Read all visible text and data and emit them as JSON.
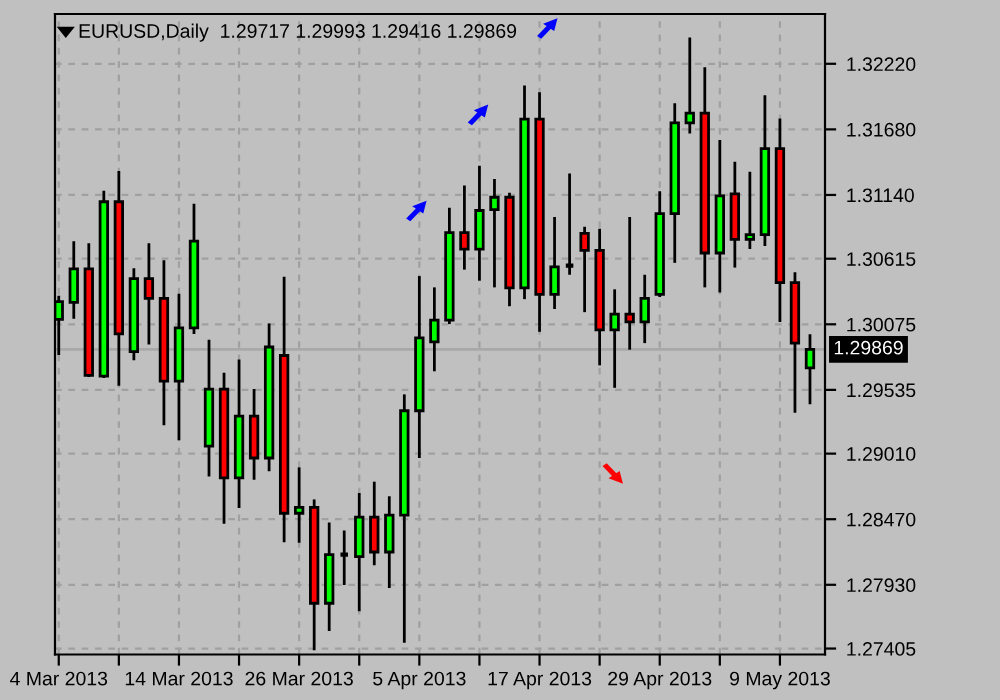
{
  "chart_data": {
    "type": "candlestick",
    "title": "EURUSD,Daily  1.29717 1.29993 1.29416 1.29869",
    "categories": [
      "4 Mar 2013",
      null,
      null,
      null,
      null,
      null,
      null,
      null,
      "14 Mar 2013",
      null,
      null,
      null,
      null,
      null,
      null,
      null,
      "26 Mar 2013",
      null,
      null,
      null,
      null,
      null,
      null,
      null,
      "5 Apr 2013",
      null,
      null,
      null,
      null,
      null,
      null,
      null,
      "17 Apr 2013",
      null,
      null,
      null,
      null,
      null,
      null,
      null,
      "29 Apr 2013",
      null,
      null,
      null,
      null,
      null,
      null,
      null,
      "9 May 2013",
      null,
      null
    ],
    "ohlc": [
      [
        1.30115,
        1.30309,
        1.29823,
        1.30261
      ],
      [
        1.30256,
        1.30759,
        1.3012,
        1.30532
      ],
      [
        1.30532,
        1.30743,
        1.2964,
        1.29655
      ],
      [
        1.29649,
        1.31175,
        1.29633,
        1.31084
      ],
      [
        1.31084,
        1.31337,
        1.29568,
        1.29996
      ],
      [
        1.2985,
        1.30537,
        1.29779,
        1.30451
      ],
      [
        1.30451,
        1.30743,
        1.29909,
        1.30288
      ],
      [
        1.30288,
        1.30602,
        1.29243,
        1.29607
      ],
      [
        1.29607,
        1.30326,
        1.2912,
        1.30045
      ],
      [
        1.30045,
        1.31067,
        1.29996,
        1.30759
      ],
      [
        1.29071,
        1.29948,
        1.28821,
        1.29542
      ],
      [
        1.29542,
        1.29677,
        1.28432,
        1.28811
      ],
      [
        1.28811,
        1.29785,
        1.28562,
        1.29319
      ],
      [
        1.29319,
        1.29542,
        1.28795,
        1.28974
      ],
      [
        1.28974,
        1.30082,
        1.28865,
        1.29888
      ],
      [
        1.29818,
        1.30467,
        1.28281,
        1.28519
      ],
      [
        1.28519,
        1.28897,
        1.28276,
        1.28568
      ],
      [
        1.28568,
        1.28633,
        1.2739,
        1.27778
      ],
      [
        1.27778,
        1.28443,
        1.2755,
        1.28179
      ],
      [
        1.28179,
        1.28378,
        1.27929,
        1.28179
      ],
      [
        1.28162,
        1.28686,
        1.27713,
        1.28487
      ],
      [
        1.28487,
        1.28779,
        1.28091,
        1.282
      ],
      [
        1.282,
        1.28659,
        1.27903,
        1.28503
      ],
      [
        1.28503,
        1.29498,
        1.27453,
        1.29363
      ],
      [
        1.29363,
        1.30472,
        1.28974,
        1.29964
      ],
      [
        1.29931,
        1.30379,
        1.29688,
        1.3011
      ],
      [
        1.3011,
        1.31035,
        1.30077,
        1.30829
      ],
      [
        1.30829,
        1.31218,
        1.30525,
        1.30694
      ],
      [
        1.30694,
        1.31381,
        1.30434,
        1.31012
      ],
      [
        1.31019,
        1.31272,
        1.30379,
        1.31121
      ],
      [
        1.31121,
        1.31158,
        1.30224,
        1.30374
      ],
      [
        1.30374,
        1.32041,
        1.30282,
        1.31765
      ],
      [
        1.31765,
        1.31986,
        1.30013,
        1.30321
      ],
      [
        1.30321,
        1.30959,
        1.30201,
        1.30548
      ],
      [
        1.30558,
        1.31316,
        1.30483,
        1.30558
      ],
      [
        1.30824,
        1.30878,
        1.30175,
        1.30683
      ],
      [
        1.30683,
        1.30861,
        1.29737,
        1.30029
      ],
      [
        1.30029,
        1.30363,
        1.29552,
        1.30159
      ],
      [
        1.30159,
        1.30959,
        1.29866,
        1.30094
      ],
      [
        1.30094,
        1.30483,
        1.2992,
        1.30288
      ],
      [
        1.30321,
        1.3117,
        1.303,
        1.30986
      ],
      [
        1.30986,
        1.31895,
        1.30581,
        1.31733
      ],
      [
        1.31733,
        1.32436,
        1.31645,
        1.31814
      ],
      [
        1.31814,
        1.32192,
        1.30379,
        1.30662
      ],
      [
        1.30662,
        1.31592,
        1.30337,
        1.31132
      ],
      [
        1.31149,
        1.31413,
        1.30542,
        1.30775
      ],
      [
        1.30775,
        1.31332,
        1.30694,
        1.30813
      ],
      [
        1.30813,
        1.3196,
        1.3072,
        1.31522
      ],
      [
        1.31522,
        1.3177,
        1.30094,
        1.30418
      ],
      [
        1.30418,
        1.30504,
        1.29347,
        1.2992
      ],
      [
        1.29717,
        1.29993,
        1.29416,
        1.29869
      ]
    ],
    "colors": [
      "#00ff00",
      "#00ff00",
      "#ff0000",
      "#00ff00",
      "#ff0000",
      "#00ff00",
      "#ff0000",
      "#ff0000",
      "#00ff00",
      "#00ff00",
      "#00ff00",
      "#ff0000",
      "#00ff00",
      "#ff0000",
      "#00ff00",
      "#ff0000",
      "#00ff00",
      "#ff0000",
      "#00ff00",
      "#000000",
      "#00ff00",
      "#ff0000",
      "#00ff00",
      "#00ff00",
      "#00ff00",
      "#00ff00",
      "#00ff00",
      "#ff0000",
      "#00ff00",
      "#00ff00",
      "#ff0000",
      "#00ff00",
      "#ff0000",
      "#00ff00",
      "#000000",
      "#ff0000",
      "#ff0000",
      "#00ff00",
      "#ff0000",
      "#00ff00",
      "#00ff00",
      "#00ff00",
      "#00ff00",
      "#ff0000",
      "#00ff00",
      "#ff0000",
      "#00ff00",
      "#00ff00",
      "#ff0000",
      "#ff0000",
      "#00ff00"
    ],
    "ylim": [
      1.27356,
      1.3263
    ],
    "yticks": [
      {
        "value": 1.3222,
        "label": "1.32220"
      },
      {
        "value": 1.3168,
        "label": "1.31680"
      },
      {
        "value": 1.3114,
        "label": "1.31140"
      },
      1.30615,
      1.30075,
      1.29535,
      {
        "value": 1.2901,
        "label": "1.29010"
      },
      {
        "value": 1.2847,
        "label": "1.28470"
      },
      {
        "value": 1.2793,
        "label": "1.27930"
      },
      1.27405
    ],
    "grid": true,
    "ref_lines": [
      {
        "axis": "y",
        "value": 1.29869,
        "label": "1.29869",
        "color": "#a8a8a8"
      }
    ]
  }
}
